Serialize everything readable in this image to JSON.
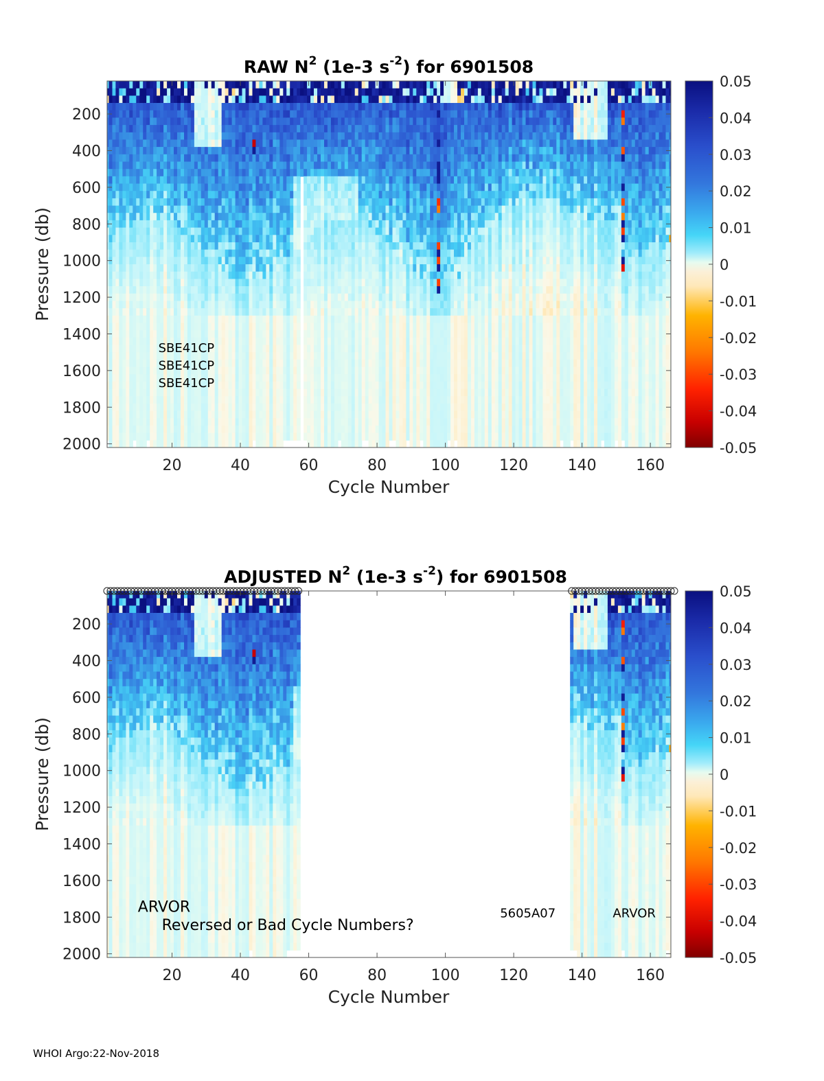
{
  "footer": "WHOI Argo:22-Nov-2018",
  "colors": {
    "colormap": [
      "#800000",
      "#c80000",
      "#ff2200",
      "#ff7700",
      "#ffb300",
      "#ffe8b8",
      "#fbf8e8",
      "#e6fbf0",
      "#d8f8fa",
      "#a2ecfb",
      "#45d5f7",
      "#3aaaee",
      "#3377dd",
      "#2a4fcc",
      "#1a2aa8",
      "#0a1080"
    ],
    "background": "#ffffff"
  },
  "chart_data": [
    {
      "type": "heatmap",
      "title_main": "RAW N",
      "title_sup1": "2",
      "title_mid": " (1e-3 s",
      "title_sup2": "-2",
      "title_end": ") for 6901508",
      "xlabel": "Cycle Number",
      "ylabel": "Pressure (db)",
      "xlim": [
        1,
        166
      ],
      "ylim": [
        2020,
        20
      ],
      "xticks": [
        "20",
        "40",
        "60",
        "80",
        "100",
        "120",
        "140",
        "160"
      ],
      "yticks": [
        "200",
        "400",
        "600",
        "800",
        "1000",
        "1200",
        "1400",
        "1600",
        "1800",
        "2000"
      ],
      "colorbar": {
        "range": [
          -0.05,
          0.05
        ],
        "ticks": [
          "0.05",
          "0.04",
          "0.03",
          "0.02",
          "0.01",
          "0",
          "-0.01",
          "-0.02",
          "-0.03",
          "-0.04",
          "-0.05"
        ]
      },
      "annotations": [
        {
          "text": "SBE41CP",
          "x": 16,
          "y": 1500
        },
        {
          "text": "SBE41CP",
          "x": 16,
          "y": 1595
        },
        {
          "text": "SBE41CP",
          "x": 16,
          "y": 1690
        }
      ]
    },
    {
      "type": "heatmap",
      "title_main": "ADJUSTED N",
      "title_sup1": "2",
      "title_mid": " (1e-3 s",
      "title_sup2": "-2",
      "title_end": ") for 6901508",
      "xlabel": "Cycle Number",
      "ylabel": "Pressure (db)",
      "xlim": [
        1,
        166
      ],
      "ylim": [
        2020,
        20
      ],
      "data_cycle_ranges": [
        [
          1,
          57
        ],
        [
          137,
          166
        ]
      ],
      "xticks": [
        "20",
        "40",
        "60",
        "80",
        "100",
        "120",
        "140",
        "160"
      ],
      "yticks": [
        "200",
        "400",
        "600",
        "800",
        "1000",
        "1200",
        "1400",
        "1600",
        "1800",
        "2000"
      ],
      "colorbar": {
        "range": [
          -0.05,
          0.05
        ],
        "ticks": [
          "0.05",
          "0.04",
          "0.03",
          "0.02",
          "0.01",
          "0",
          "-0.01",
          "-0.02",
          "-0.03",
          "-0.04",
          "-0.05"
        ]
      },
      "marker_rows": [
        [
          1,
          57
        ],
        [
          137,
          167
        ]
      ],
      "annotations": [
        {
          "text": "ARVOR",
          "x": 10,
          "y": 1770,
          "size": "large"
        },
        {
          "text": "Reversed or Bad Cycle Numbers?",
          "x": 17,
          "y": 1870,
          "size": "large"
        },
        {
          "text": "5605A07",
          "x": 116,
          "y": 1800,
          "size": "small"
        },
        {
          "text": "ARVOR",
          "x": 149,
          "y": 1800,
          "size": "medium"
        }
      ]
    }
  ]
}
